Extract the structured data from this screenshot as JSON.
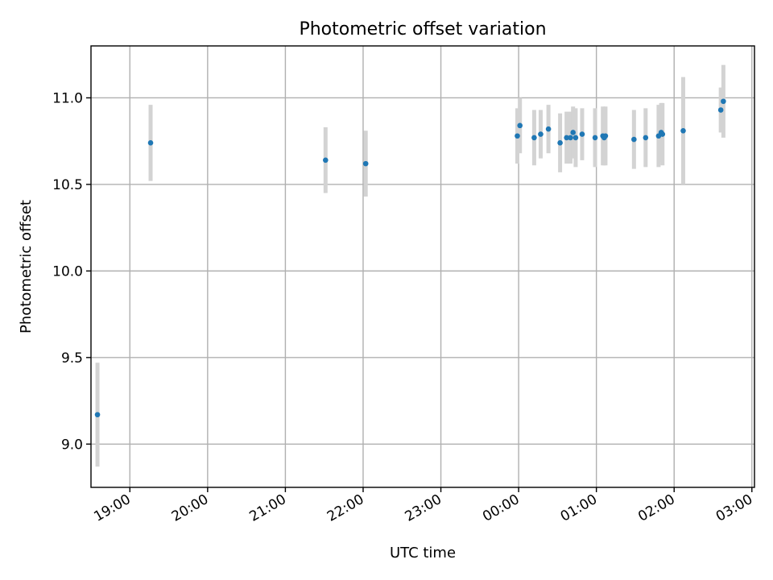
{
  "chart_data": {
    "type": "scatter",
    "title": "Photometric offset variation",
    "xlabel": "UTC time",
    "ylabel": "Photometric offset",
    "x_axis": "time",
    "xlim": [
      "18:30",
      "03:02"
    ],
    "ylim": [
      8.75,
      11.3
    ],
    "grid": true,
    "legend": "none",
    "colors": {
      "points": "#1f77b4",
      "error_bars": "#d3d3d3"
    },
    "x_ticks": [
      "19:00",
      "20:00",
      "21:00",
      "22:00",
      "23:00",
      "00:00",
      "01:00",
      "02:00",
      "03:00"
    ],
    "y_ticks": [
      "9.0",
      "9.5",
      "10.0",
      "10.5",
      "11.0"
    ],
    "points": [
      {
        "x": "18:35",
        "y": 9.17,
        "err": 0.3
      },
      {
        "x": "19:16",
        "y": 10.74,
        "err": 0.22
      },
      {
        "x": "21:31",
        "y": 10.64,
        "err": 0.19
      },
      {
        "x": "22:02",
        "y": 10.62,
        "err": 0.19
      },
      {
        "x": "23:59",
        "y": 10.78,
        "err": 0.16
      },
      {
        "x": "00:01",
        "y": 10.84,
        "err": 0.16
      },
      {
        "x": "00:12",
        "y": 10.77,
        "err": 0.16
      },
      {
        "x": "00:17",
        "y": 10.79,
        "err": 0.14
      },
      {
        "x": "00:23",
        "y": 10.82,
        "err": 0.14
      },
      {
        "x": "00:32",
        "y": 10.74,
        "err": 0.17
      },
      {
        "x": "00:37",
        "y": 10.77,
        "err": 0.15
      },
      {
        "x": "00:40",
        "y": 10.77,
        "err": 0.15
      },
      {
        "x": "00:42",
        "y": 10.8,
        "err": 0.15
      },
      {
        "x": "00:44",
        "y": 10.77,
        "err": 0.17
      },
      {
        "x": "00:49",
        "y": 10.79,
        "err": 0.15
      },
      {
        "x": "00:59",
        "y": 10.77,
        "err": 0.17
      },
      {
        "x": "01:05",
        "y": 10.78,
        "err": 0.17
      },
      {
        "x": "01:06",
        "y": 10.77,
        "err": 0.16
      },
      {
        "x": "01:07",
        "y": 10.78,
        "err": 0.17
      },
      {
        "x": "01:29",
        "y": 10.76,
        "err": 0.17
      },
      {
        "x": "01:38",
        "y": 10.77,
        "err": 0.17
      },
      {
        "x": "01:48",
        "y": 10.78,
        "err": 0.18
      },
      {
        "x": "01:50",
        "y": 10.8,
        "err": 0.17
      },
      {
        "x": "01:51",
        "y": 10.79,
        "err": 0.18
      },
      {
        "x": "02:07",
        "y": 10.81,
        "err": 0.31
      },
      {
        "x": "02:36",
        "y": 10.93,
        "err": 0.13
      },
      {
        "x": "02:38",
        "y": 10.98,
        "err": 0.21
      }
    ]
  }
}
